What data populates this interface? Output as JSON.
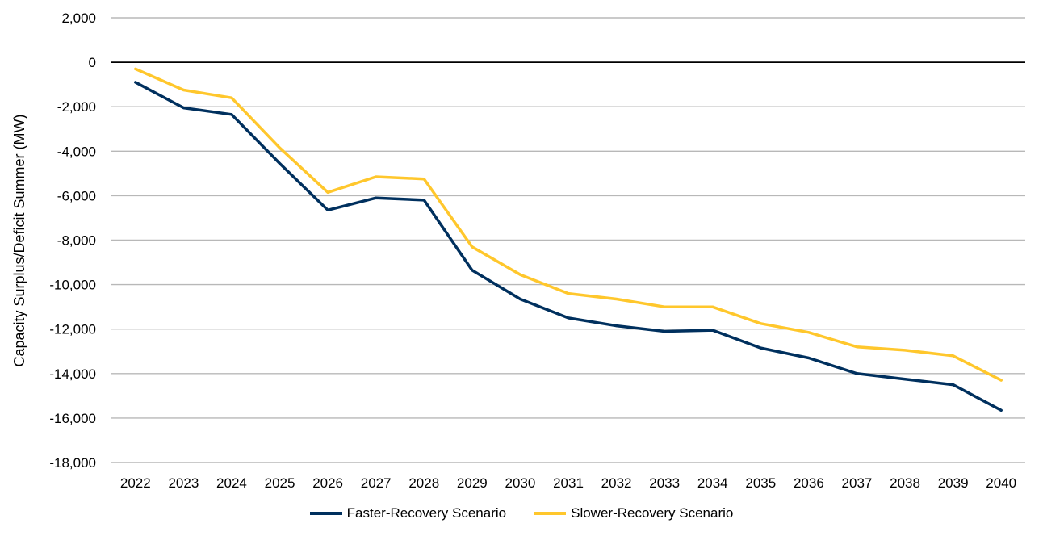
{
  "chart_data": {
    "type": "line",
    "ylabel": "Capacity Surplus/Deficit Summer (MW)",
    "xlabel": "",
    "ylim": [
      -18000,
      2000
    ],
    "yticks": [
      2000,
      0,
      -2000,
      -4000,
      -6000,
      -8000,
      -10000,
      -12000,
      -14000,
      -16000,
      -18000
    ],
    "ytick_labels": [
      "2,000",
      "0",
      "-2,000",
      "-4,000",
      "-6,000",
      "-8,000",
      "-10,000",
      "-12,000",
      "-14,000",
      "-16,000",
      "-18,000"
    ],
    "x": [
      "2022",
      "2023",
      "2024",
      "2025",
      "2026",
      "2027",
      "2028",
      "2029",
      "2030",
      "2031",
      "2032",
      "2033",
      "2034",
      "2035",
      "2036",
      "2037",
      "2038",
      "2039",
      "2040"
    ],
    "grid": true,
    "legend_position": "bottom",
    "series": [
      {
        "name": "Faster-Recovery Scenario",
        "color": "#00305E",
        "values": [
          -900,
          -2050,
          -2350,
          -4550,
          -6650,
          -6100,
          -6200,
          -9350,
          -10650,
          -11500,
          -11850,
          -12100,
          -12050,
          -12850,
          -13300,
          -14000,
          -14250,
          -14500,
          -15650
        ]
      },
      {
        "name": "Slower-Recovery Scenario",
        "color": "#FFC72C",
        "values": [
          -300,
          -1250,
          -1600,
          -3850,
          -5850,
          -5150,
          -5250,
          -8300,
          -9550,
          -10400,
          -10650,
          -11000,
          -11000,
          -11750,
          -12150,
          -12800,
          -12950,
          -13200,
          -14300
        ]
      }
    ]
  }
}
